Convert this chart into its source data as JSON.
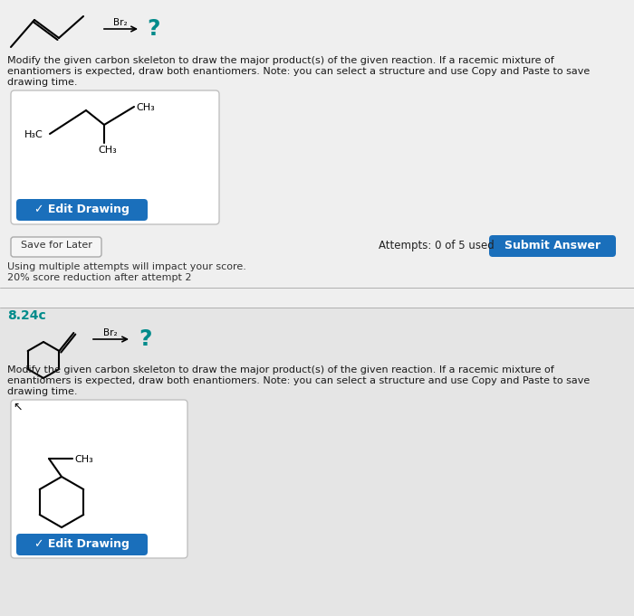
{
  "bg_color": "#c8c8c8",
  "panel1_bg": "#efefef",
  "panel2_bg": "#e5e5e5",
  "white_box_color": "#ffffff",
  "blue_button_color": "#1a6fbb",
  "text_color": "#1a1a1a",
  "teal_color": "#008b8b",
  "section_label": "8.24c",
  "reaction_reagent": "Br₂",
  "question_mark": "?",
  "panel1_instruction_1": "Modify the given carbon skeleton to draw the major product(s) of the given reaction. If a racemic mixture of",
  "panel1_instruction_2": "enantiomers is expected, draw both enantiomers. Note: you can select a structure and use Copy and Paste to save",
  "panel1_instruction_3": "drawing time.",
  "save_button_text": "Save for Later",
  "attempts_text": "Attempts: 0 of 5 used",
  "submit_text": "Submit Answer",
  "score_text1": "Using multiple attempts will impact your score.",
  "score_text2": "20% score reduction after attempt 2",
  "edit_drawing_text": "✓ Edit Drawing",
  "h3c_label": "H₃C",
  "ch3_label_right": "CH₃",
  "ch3_label_down": "CH₃",
  "ch3_label2": "CH₃"
}
